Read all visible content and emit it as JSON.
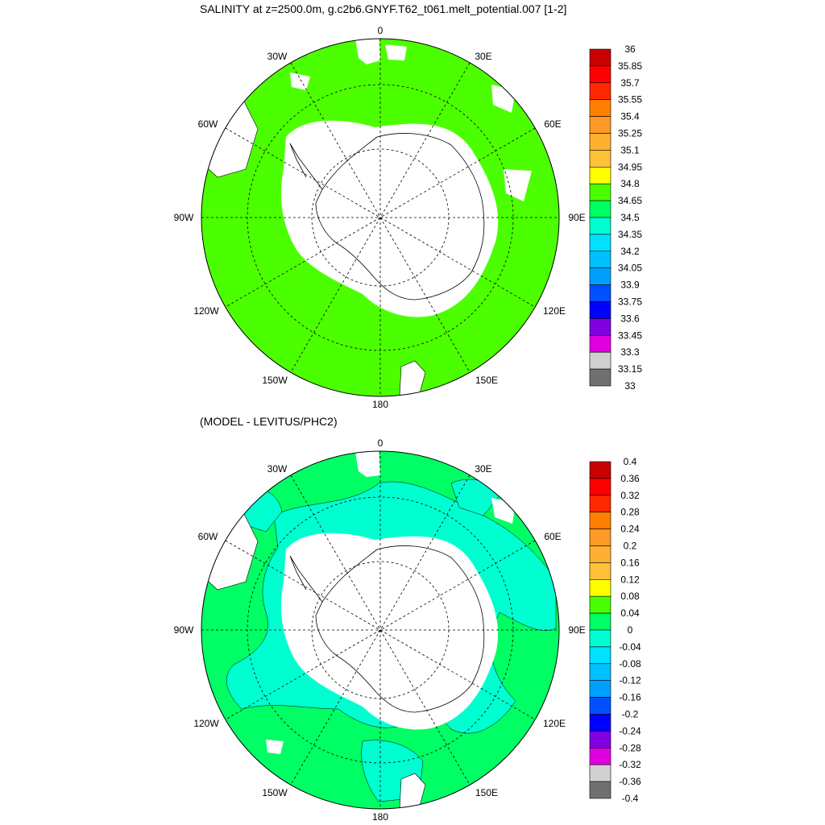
{
  "plot1": {
    "title": "SALINITY at z=2500.0m, g.c2b6.GNYF.T62_t061.melt_potential.007 [1-2]",
    "lon_labels": [
      "0",
      "30E",
      "60E",
      "90E",
      "120E",
      "150E",
      "180",
      "150W",
      "120W",
      "90W",
      "60W",
      "30W"
    ],
    "field_color": "#4cff00",
    "colorbar": {
      "labels": [
        "36",
        "35.85",
        "35.7",
        "35.55",
        "35.4",
        "35.25",
        "35.1",
        "34.95",
        "34.8",
        "34.65",
        "34.5",
        "34.35",
        "34.2",
        "34.05",
        "33.9",
        "33.75",
        "33.6",
        "33.45",
        "33.3",
        "33.15",
        "33"
      ],
      "colors": [
        "#c80000",
        "#ff0000",
        "#ff2800",
        "#ff8000",
        "#ff9a28",
        "#ffb030",
        "#ffc03a",
        "#ffff00",
        "#4cff00",
        "#00ff64",
        "#00ffd0",
        "#00e0ff",
        "#00c0ff",
        "#00a0ff",
        "#0050ff",
        "#0000ff",
        "#8000e0",
        "#e000e0",
        "#d0d0d0",
        "#707070"
      ]
    }
  },
  "plot2": {
    "title": "(MODEL - LEVITUS/PHC2)",
    "lon_labels": [
      "0",
      "30E",
      "60E",
      "90E",
      "120E",
      "150E",
      "180",
      "150W",
      "120W",
      "90W",
      "60W",
      "30W"
    ],
    "field_color": "#00ff64",
    "anomaly_color": "#00ffd0",
    "colorbar": {
      "labels": [
        "0.4",
        "0.36",
        "0.32",
        "0.28",
        "0.24",
        "0.2",
        "0.16",
        "0.12",
        "0.08",
        "0.04",
        "0",
        "-0.04",
        "-0.08",
        "-0.12",
        "-0.16",
        "-0.2",
        "-0.24",
        "-0.28",
        "-0.32",
        "-0.36",
        "-0.4"
      ],
      "colors": [
        "#c80000",
        "#ff0000",
        "#ff2800",
        "#ff8000",
        "#ff9a28",
        "#ffb030",
        "#ffc03a",
        "#ffff00",
        "#4cff00",
        "#00ff64",
        "#00ffd0",
        "#00e0ff",
        "#00c0ff",
        "#00a0ff",
        "#0050ff",
        "#0000ff",
        "#8000e0",
        "#e000e0",
        "#d0d0d0",
        "#707070"
      ]
    }
  }
}
